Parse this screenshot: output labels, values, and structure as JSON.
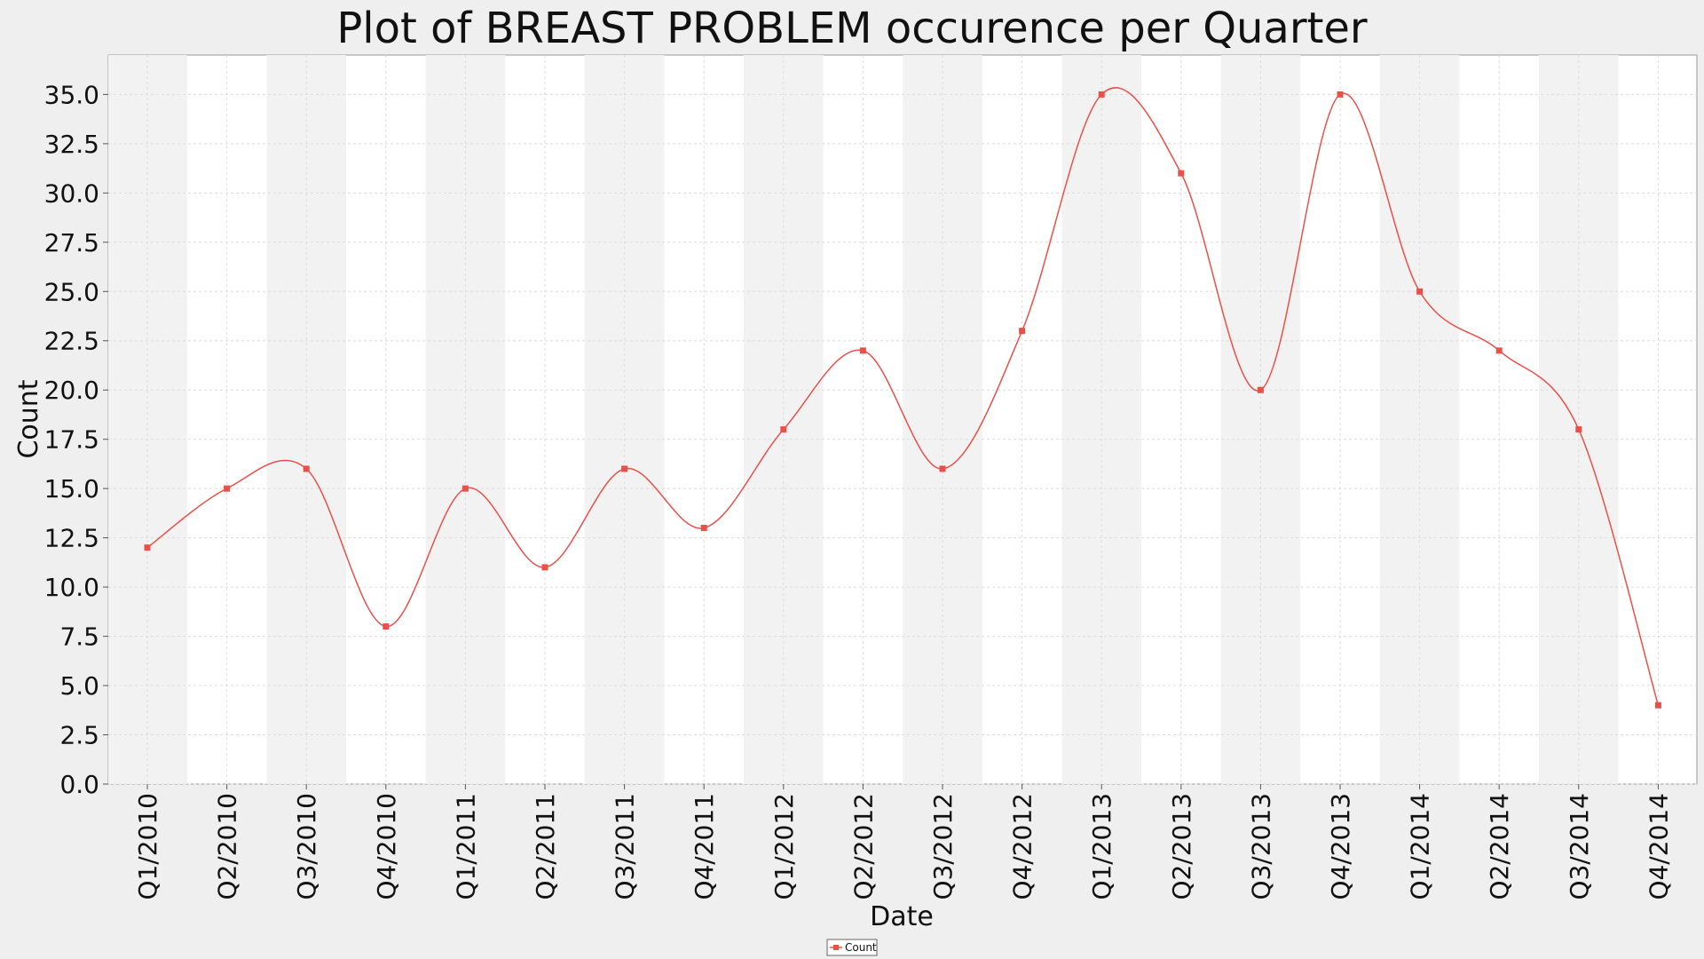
{
  "chart_data": {
    "type": "line",
    "title": "Plot of BREAST PROBLEM occurence per Quarter",
    "xlabel": "Date",
    "ylabel": "Count",
    "categories": [
      "Q1/2010",
      "Q2/2010",
      "Q3/2010",
      "Q4/2010",
      "Q1/2011",
      "Q2/2011",
      "Q3/2011",
      "Q4/2011",
      "Q1/2012",
      "Q2/2012",
      "Q3/2012",
      "Q4/2012",
      "Q1/2013",
      "Q2/2013",
      "Q3/2013",
      "Q4/2013",
      "Q1/2014",
      "Q2/2014",
      "Q3/2014",
      "Q4/2014"
    ],
    "series": [
      {
        "name": "Count",
        "values": [
          12,
          15,
          16,
          8,
          15,
          11,
          16,
          13,
          18,
          22,
          16,
          23,
          35,
          31,
          20,
          35,
          25,
          22,
          18,
          4
        ],
        "color": "#e8504a"
      }
    ],
    "ylim": [
      0,
      37
    ],
    "yticks": [
      "0.0",
      "2.5",
      "5.0",
      "7.5",
      "10.0",
      "12.5",
      "15.0",
      "17.5",
      "20.0",
      "22.5",
      "25.0",
      "27.5",
      "30.0",
      "32.5",
      "35.0"
    ],
    "line_style": "smoothed",
    "grid": true,
    "legend": "bottom-center",
    "colors": {
      "page_background": "#efefef",
      "plot_background": "#ffffff",
      "alternate_band": "#f2f2f2",
      "grid": "#dcdcdc",
      "series": "#e8504a"
    }
  }
}
